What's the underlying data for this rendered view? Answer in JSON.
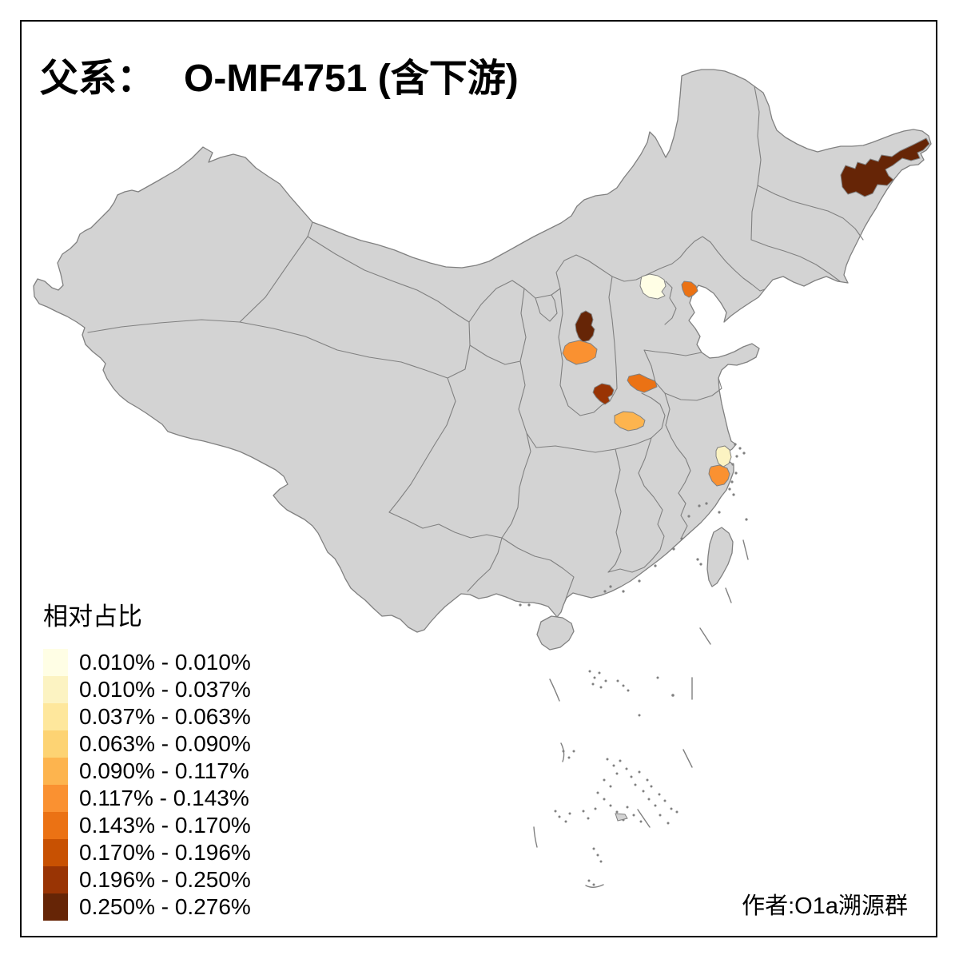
{
  "title": {
    "prefix": "父系：",
    "lineage_label": "O-MF4751 (含下游)"
  },
  "legend": {
    "title": "相对占比",
    "classes": [
      {
        "label": "0.010% - 0.010%",
        "color": "#FFFEE5"
      },
      {
        "label": "0.010% - 0.037%",
        "color": "#FCF3C2"
      },
      {
        "label": "0.037% - 0.063%",
        "color": "#FEE79C"
      },
      {
        "label": "0.063% - 0.090%",
        "color": "#FDD373"
      },
      {
        "label": "0.090% - 0.117%",
        "color": "#FDB44E"
      },
      {
        "label": "0.117% - 0.143%",
        "color": "#FA9131"
      },
      {
        "label": "0.143% - 0.170%",
        "color": "#EB7214"
      },
      {
        "label": "0.170% - 0.196%",
        "color": "#C85102"
      },
      {
        "label": "0.196% - 0.250%",
        "color": "#993404"
      },
      {
        "label": "0.250% - 0.276%",
        "color": "#662506"
      }
    ]
  },
  "attribution": "作者:O1a溯源群",
  "map": {
    "base_fill": "#D3D3D3",
    "boundary_color": "#808080",
    "background": "#FFFFFF",
    "frame_color": "#000000",
    "highlighted_regions": [
      {
        "id": "heilongjiang-east",
        "class_index": 9
      },
      {
        "id": "beijing",
        "class_index": 0
      },
      {
        "id": "tangshan",
        "class_index": 6
      },
      {
        "id": "shanxi-north",
        "class_index": 9
      },
      {
        "id": "shanxi-center",
        "class_index": 5
      },
      {
        "id": "shaanxi-south",
        "class_index": 8
      },
      {
        "id": "henan-northeast",
        "class_index": 6
      },
      {
        "id": "henan-south",
        "class_index": 4
      },
      {
        "id": "zhejiang-north",
        "class_index": 1
      },
      {
        "id": "zhejiang-south",
        "class_index": 5
      }
    ]
  },
  "chart_data": {
    "type": "heatmap",
    "title": "父系： O-MF4751 (含下游)",
    "legend_title": "相对占比",
    "legend_position": "bottom-left",
    "bins": [
      "0.010% - 0.010%",
      "0.010% - 0.037%",
      "0.037% - 0.063%",
      "0.063% - 0.090%",
      "0.090% - 0.117%",
      "0.117% - 0.143%",
      "0.143% - 0.170%",
      "0.170% - 0.196%",
      "0.196% - 0.250%",
      "0.250% - 0.276%"
    ],
    "regions": [
      {
        "id": "heilongjiang-east",
        "bin": "0.250% - 0.276%"
      },
      {
        "id": "shanxi-north",
        "bin": "0.250% - 0.276%"
      },
      {
        "id": "shaanxi-south",
        "bin": "0.196% - 0.250%"
      },
      {
        "id": "tangshan",
        "bin": "0.143% - 0.170%"
      },
      {
        "id": "henan-northeast",
        "bin": "0.143% - 0.170%"
      },
      {
        "id": "shanxi-center",
        "bin": "0.117% - 0.143%"
      },
      {
        "id": "zhejiang-south",
        "bin": "0.117% - 0.143%"
      },
      {
        "id": "henan-south",
        "bin": "0.090% - 0.117%"
      },
      {
        "id": "zhejiang-north",
        "bin": "0.010% - 0.037%"
      },
      {
        "id": "beijing",
        "bin": "0.010% - 0.010%"
      }
    ]
  }
}
